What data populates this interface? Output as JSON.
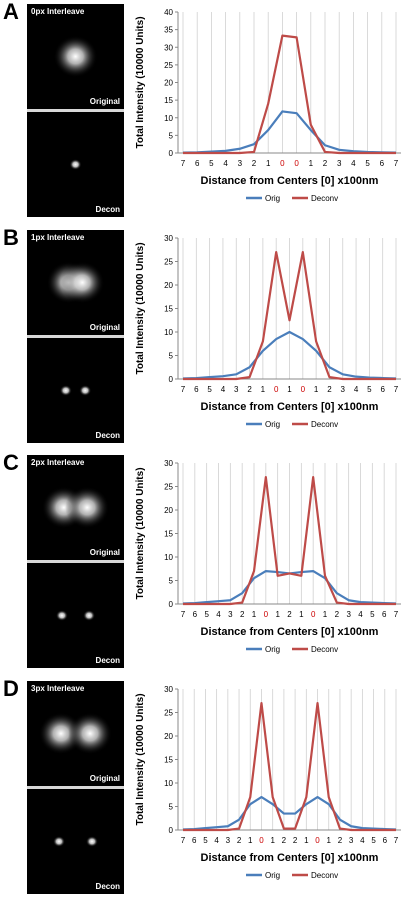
{
  "colors": {
    "orig": "#4a7ebb",
    "deconv": "#be4b48",
    "center_tick": "#cc0000"
  },
  "chart_data": [
    {
      "type": "line",
      "panel_letter": "A",
      "interleave_label": "0px Interleave",
      "top_image_label": "Original",
      "bottom_image_label": "Decon",
      "ylabel": "Total Intensity  (10000 Units)",
      "xlabel": "Distance from Centers [0] x100nm",
      "ylim": [
        0,
        40
      ],
      "yticks": [
        "0",
        "5",
        "10",
        "15",
        "20",
        "25",
        "30",
        "35",
        "40"
      ],
      "x_tick_labels": [
        "7",
        "6",
        "5",
        "4",
        "3",
        "2",
        "1",
        "0",
        "0",
        "1",
        "2",
        "3",
        "4",
        "5",
        "6",
        "7"
      ],
      "center_tick_indices": [
        7,
        8
      ],
      "grid": "vertical",
      "legend": "bottom",
      "series": [
        {
          "name": "Orig",
          "values": [
            0.1,
            0.2,
            0.4,
            0.6,
            1.2,
            2.5,
            6.5,
            11.8,
            11.3,
            6.5,
            2.2,
            0.9,
            0.5,
            0.3,
            0.2,
            0.1
          ]
        },
        {
          "name": "Deconv",
          "values": [
            0,
            0,
            0,
            0,
            0,
            0.3,
            14,
            33.3,
            32.8,
            8,
            0.3,
            0,
            0,
            0,
            0,
            0
          ]
        }
      ],
      "spots": {
        "orig": [
          [
            0.5,
            0.5
          ]
        ],
        "decon": [
          [
            0.5,
            0.5
          ]
        ]
      }
    },
    {
      "type": "line",
      "panel_letter": "B",
      "interleave_label": "1px Interleave",
      "top_image_label": "Original",
      "bottom_image_label": "Decon",
      "ylabel": "Total Intensity  (10000 Units)",
      "xlabel": "Distance from Centers [0] x100nm",
      "ylim": [
        0,
        30
      ],
      "yticks": [
        "0",
        "5",
        "10",
        "15",
        "20",
        "25",
        "30"
      ],
      "x_tick_labels": [
        "7",
        "6",
        "5",
        "4",
        "3",
        "2",
        "1",
        "0",
        "1",
        "0",
        "1",
        "2",
        "3",
        "4",
        "5",
        "6",
        "7"
      ],
      "center_tick_indices": [
        7,
        9
      ],
      "grid": "vertical",
      "legend": "bottom",
      "series": [
        {
          "name": "Orig",
          "values": [
            0.1,
            0.2,
            0.4,
            0.6,
            1,
            2.5,
            6,
            8.5,
            10,
            8.5,
            6,
            2.5,
            1,
            0.5,
            0.3,
            0.2,
            0.1
          ]
        },
        {
          "name": "Deconv",
          "values": [
            0,
            0,
            0,
            0,
            0,
            0.4,
            8,
            27,
            12.5,
            27,
            8,
            0.4,
            0,
            0,
            0,
            0,
            0
          ]
        }
      ],
      "spots": {
        "orig": [
          [
            0.43,
            0.5
          ],
          [
            0.57,
            0.5
          ]
        ],
        "decon": [
          [
            0.4,
            0.5
          ],
          [
            0.6,
            0.5
          ]
        ]
      }
    },
    {
      "type": "line",
      "panel_letter": "C",
      "interleave_label": "2px Interleave",
      "top_image_label": "Original",
      "bottom_image_label": "Decon",
      "ylabel": "Total Intensity  (10000 Units)",
      "xlabel": "Distance from Centers [0] x100nm",
      "ylim": [
        0,
        30
      ],
      "yticks": [
        "0",
        "5",
        "10",
        "15",
        "20",
        "25",
        "30"
      ],
      "x_tick_labels": [
        "7",
        "6",
        "5",
        "4",
        "3",
        "2",
        "1",
        "0",
        "1",
        "2",
        "1",
        "0",
        "1",
        "2",
        "3",
        "4",
        "5",
        "6",
        "7"
      ],
      "center_tick_indices": [
        7,
        11
      ],
      "grid": "vertical",
      "legend": "bottom",
      "series": [
        {
          "name": "Orig",
          "values": [
            0.1,
            0.2,
            0.4,
            0.6,
            0.8,
            2.3,
            5.5,
            7,
            6.8,
            6.5,
            6.8,
            7,
            5.5,
            2.3,
            0.8,
            0.4,
            0.3,
            0.2,
            0.1
          ]
        },
        {
          "name": "Deconv",
          "values": [
            0,
            0,
            0,
            0,
            0,
            0.3,
            7,
            27,
            6,
            6.5,
            6,
            27,
            6,
            0.3,
            0,
            0,
            0,
            0,
            0
          ]
        }
      ],
      "spots": {
        "orig": [
          [
            0.38,
            0.5
          ],
          [
            0.62,
            0.5
          ]
        ],
        "decon": [
          [
            0.36,
            0.5
          ],
          [
            0.64,
            0.5
          ]
        ]
      }
    },
    {
      "type": "line",
      "panel_letter": "D",
      "interleave_label": "3px Interleave",
      "top_image_label": "Original",
      "bottom_image_label": "Decon",
      "ylabel": "Total Intensity  (10000 Units)",
      "xlabel": "Distance from Centers [0] x100nm",
      "ylim": [
        0,
        30
      ],
      "yticks": [
        "0",
        "5",
        "10",
        "15",
        "20",
        "25",
        "30"
      ],
      "x_tick_labels": [
        "7",
        "6",
        "5",
        "4",
        "3",
        "2",
        "1",
        "0",
        "1",
        "2",
        "2",
        "1",
        "0",
        "1",
        "2",
        "3",
        "4",
        "5",
        "6",
        "7"
      ],
      "center_tick_indices": [
        7,
        12
      ],
      "grid": "vertical",
      "legend": "bottom",
      "series": [
        {
          "name": "Orig",
          "values": [
            0.1,
            0.2,
            0.4,
            0.6,
            0.8,
            2.2,
            5.5,
            7,
            5.5,
            3.5,
            3.5,
            5.5,
            7,
            5.5,
            2.2,
            0.8,
            0.4,
            0.3,
            0.2,
            0.1
          ]
        },
        {
          "name": "Deconv",
          "values": [
            0,
            0,
            0,
            0,
            0,
            0.3,
            7,
            27,
            7,
            0.3,
            0.3,
            7,
            27,
            7,
            0.3,
            0,
            0,
            0,
            0,
            0
          ]
        }
      ],
      "spots": {
        "orig": [
          [
            0.35,
            0.5
          ],
          [
            0.65,
            0.5
          ]
        ],
        "decon": [
          [
            0.33,
            0.5
          ],
          [
            0.67,
            0.5
          ]
        ]
      }
    }
  ]
}
